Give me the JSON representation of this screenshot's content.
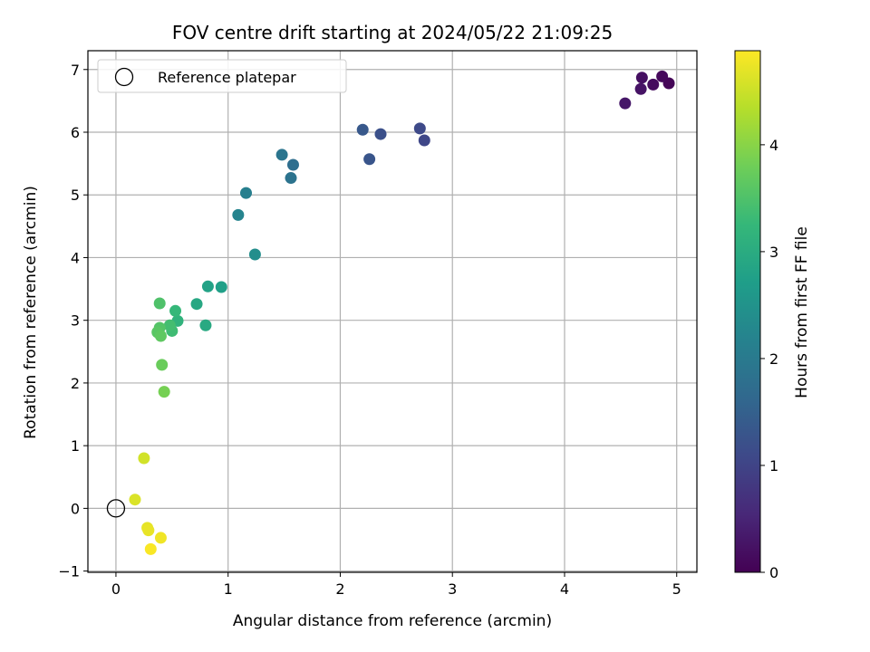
{
  "chart_data": {
    "type": "scatter",
    "title": "FOV centre drift starting at 2024/05/22 21:09:25",
    "xlabel": "Angular distance from reference (arcmin)",
    "ylabel": "Rotation from reference (arcmin)",
    "xlim": [
      -0.25,
      5.18
    ],
    "ylim": [
      -1.02,
      7.3
    ],
    "x_ticks": [
      "0",
      "1",
      "2",
      "3",
      "4",
      "5"
    ],
    "y_ticks": [
      "−1",
      "0",
      "1",
      "2",
      "3",
      "4",
      "5",
      "6",
      "7"
    ],
    "grid": true,
    "legend": {
      "placement": "top-left",
      "entries": [
        "Reference platepar"
      ]
    },
    "reference_point": {
      "x": 0.0,
      "y": 0.0
    },
    "colorbar": {
      "label": "Hours from first FF file",
      "range": [
        0,
        4.88
      ],
      "ticks": [
        "0",
        "1",
        "2",
        "3",
        "4"
      ],
      "colormap": "viridis",
      "colors": [
        "#440154",
        "#482878",
        "#3e4989",
        "#31688e",
        "#26828e",
        "#1f9e89",
        "#35b779",
        "#6ece58",
        "#b5de2b",
        "#fde725"
      ]
    },
    "points": [
      {
        "x": 4.93,
        "y": 6.78,
        "c": 0.05
      },
      {
        "x": 4.87,
        "y": 6.89,
        "c": 0.1
      },
      {
        "x": 4.79,
        "y": 6.76,
        "c": 0.15
      },
      {
        "x": 4.69,
        "y": 6.87,
        "c": 0.2
      },
      {
        "x": 4.68,
        "y": 6.69,
        "c": 0.25
      },
      {
        "x": 4.54,
        "y": 6.46,
        "c": 0.3
      },
      {
        "x": 2.75,
        "y": 5.87,
        "c": 1.05
      },
      {
        "x": 2.71,
        "y": 6.06,
        "c": 1.1
      },
      {
        "x": 2.36,
        "y": 5.97,
        "c": 1.2
      },
      {
        "x": 2.26,
        "y": 5.57,
        "c": 1.3
      },
      {
        "x": 2.2,
        "y": 6.04,
        "c": 1.35
      },
      {
        "x": 1.58,
        "y": 5.48,
        "c": 1.75
      },
      {
        "x": 1.56,
        "y": 5.27,
        "c": 1.85
      },
      {
        "x": 1.48,
        "y": 5.64,
        "c": 1.9
      },
      {
        "x": 1.16,
        "y": 5.03,
        "c": 2.1
      },
      {
        "x": 1.09,
        "y": 4.68,
        "c": 2.2
      },
      {
        "x": 1.24,
        "y": 4.05,
        "c": 2.4
      },
      {
        "x": 0.94,
        "y": 3.53,
        "c": 2.75
      },
      {
        "x": 0.82,
        "y": 3.54,
        "c": 2.8
      },
      {
        "x": 0.72,
        "y": 3.26,
        "c": 2.9
      },
      {
        "x": 0.8,
        "y": 2.92,
        "c": 2.95
      },
      {
        "x": 0.55,
        "y": 2.99,
        "c": 3.15
      },
      {
        "x": 0.53,
        "y": 3.15,
        "c": 3.25
      },
      {
        "x": 0.5,
        "y": 2.83,
        "c": 3.35
      },
      {
        "x": 0.48,
        "y": 2.92,
        "c": 3.4
      },
      {
        "x": 0.39,
        "y": 3.27,
        "c": 3.5
      },
      {
        "x": 0.39,
        "y": 2.88,
        "c": 3.55
      },
      {
        "x": 0.37,
        "y": 2.81,
        "c": 3.6
      },
      {
        "x": 0.4,
        "y": 2.75,
        "c": 3.65
      },
      {
        "x": 0.41,
        "y": 2.29,
        "c": 3.75
      },
      {
        "x": 0.43,
        "y": 1.86,
        "c": 3.85
      },
      {
        "x": 0.25,
        "y": 0.8,
        "c": 4.55
      },
      {
        "x": 0.17,
        "y": 0.14,
        "c": 4.62
      },
      {
        "x": 0.28,
        "y": -0.31,
        "c": 4.7
      },
      {
        "x": 0.29,
        "y": -0.35,
        "c": 4.72
      },
      {
        "x": 0.4,
        "y": -0.47,
        "c": 4.78
      },
      {
        "x": 0.31,
        "y": -0.65,
        "c": 4.85
      }
    ]
  }
}
